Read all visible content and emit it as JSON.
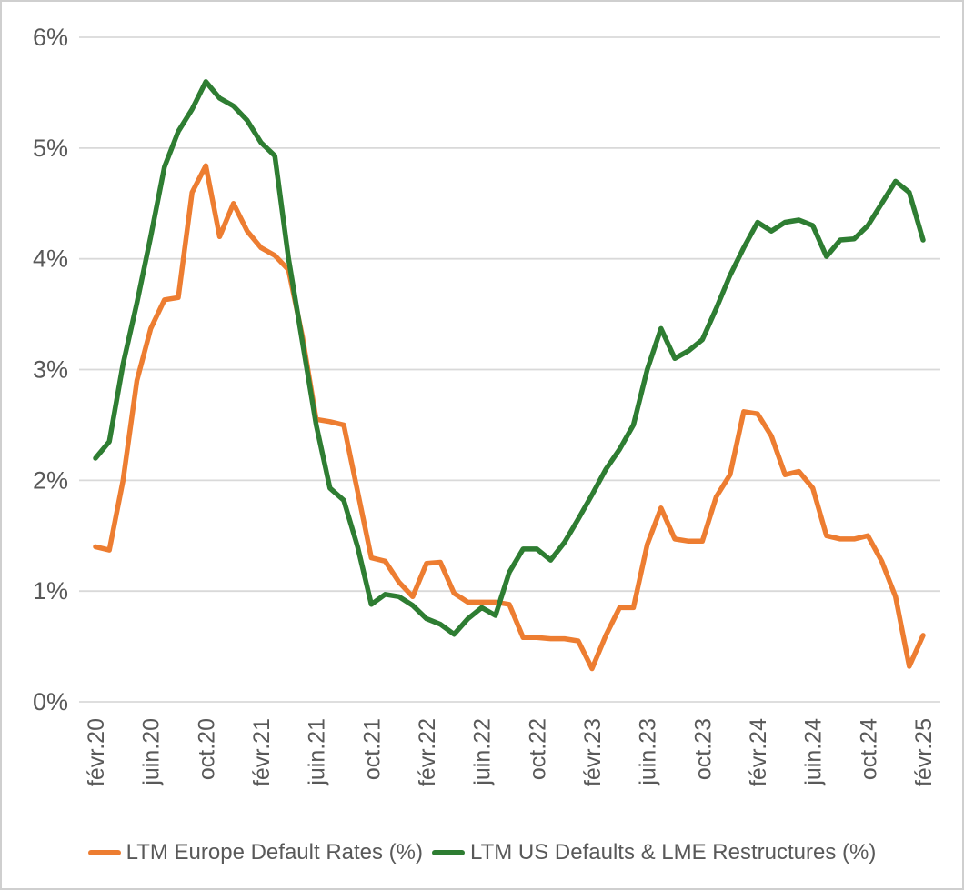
{
  "colors": {
    "background": "#ffffff",
    "border": "#cfcfcf",
    "gridline": "#d9d9d9",
    "axis_text": "#595959",
    "legend_text": "#595959",
    "europe_series": "#ED7D31",
    "us_series": "#2E7D32"
  },
  "legend": {
    "europe_label": "LTM Europe Default Rates (%)",
    "us_label": "LTM US Defaults & LME Restructures (%)"
  },
  "chart_data": {
    "type": "line",
    "title": "",
    "xlabel": "",
    "ylabel": "",
    "ylim": [
      0,
      6
    ],
    "grid": "horizontal",
    "legend_position": "bottom",
    "y_tick_labels": [
      "0%",
      "1%",
      "2%",
      "3%",
      "4%",
      "5%",
      "6%"
    ],
    "x_tick_labels": [
      "févr.20",
      "juin.20",
      "oct.20",
      "févr.21",
      "juin.21",
      "oct.21",
      "févr.22",
      "juin.22",
      "oct.22",
      "févr.23",
      "juin.23",
      "oct.23",
      "févr.24",
      "juin.24",
      "oct.24",
      "févr.25"
    ],
    "x_tick_every_n_points": 4,
    "x_frequency": "monthly",
    "x_range_description": "Monthly points from févr.20 to févr.25 (61 points), labels shown every 4 months",
    "series": [
      {
        "name": "LTM Europe Default Rates (%)",
        "color": "#ED7D31",
        "values": [
          1.4,
          1.37,
          2.0,
          2.9,
          3.37,
          3.63,
          3.65,
          4.6,
          4.84,
          4.2,
          4.5,
          4.25,
          4.1,
          4.03,
          3.9,
          3.3,
          2.55,
          2.53,
          2.5,
          1.9,
          1.3,
          1.27,
          1.08,
          0.95,
          1.25,
          1.26,
          0.98,
          0.9,
          0.9,
          0.9,
          0.88,
          0.58,
          0.58,
          0.57,
          0.57,
          0.55,
          0.3,
          0.6,
          0.85,
          0.85,
          1.42,
          1.75,
          1.47,
          1.45,
          1.45,
          1.85,
          2.05,
          2.62,
          2.6,
          2.4,
          2.05,
          2.08,
          1.93,
          1.5,
          1.47,
          1.47,
          1.5,
          1.27,
          0.95,
          0.32,
          0.6
        ]
      },
      {
        "name": "LTM US Defaults & LME Restructures (%)",
        "color": "#2E7D32",
        "values": [
          2.2,
          2.35,
          3.05,
          3.6,
          4.2,
          4.83,
          5.15,
          5.35,
          5.6,
          5.45,
          5.38,
          5.25,
          5.05,
          4.93,
          4.0,
          3.25,
          2.5,
          1.93,
          1.82,
          1.4,
          0.88,
          0.97,
          0.95,
          0.87,
          0.75,
          0.7,
          0.61,
          0.75,
          0.85,
          0.78,
          1.17,
          1.38,
          1.38,
          1.28,
          1.44,
          1.65,
          1.87,
          2.1,
          2.28,
          2.5,
          3.0,
          3.37,
          3.1,
          3.17,
          3.27,
          3.55,
          3.85,
          4.1,
          4.33,
          4.25,
          4.33,
          4.35,
          4.3,
          4.02,
          4.17,
          4.18,
          4.3,
          4.5,
          4.7,
          4.6,
          4.17
        ]
      }
    ]
  }
}
